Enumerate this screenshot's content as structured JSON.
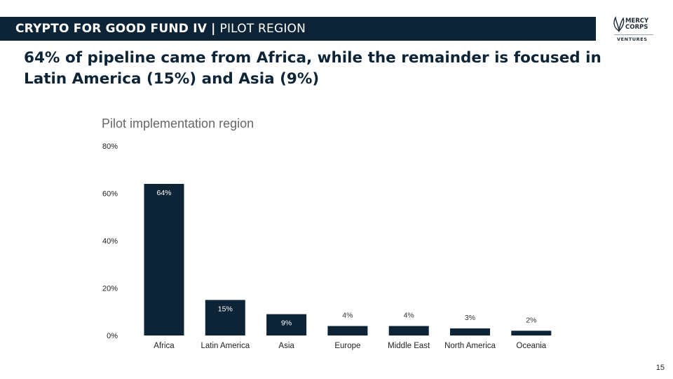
{
  "header": {
    "fund": "CRYPTO FOR GOOD FUND IV",
    "separator": "|",
    "section": "PILOT REGION"
  },
  "logo": {
    "line1": "MERCY",
    "line2": "CORPS",
    "line3": "VENTURES"
  },
  "headline": "64% of pipeline came from Africa, while the remainder is focused in Latin America (15%) and Asia (9%)",
  "page_number": "15",
  "colors": {
    "bar": "#0d2436",
    "header_bg": "#0d2436",
    "chart_title": "#666666"
  },
  "chart_data": {
    "type": "bar",
    "title": "Pilot implementation region",
    "categories": [
      "Africa",
      "Latin America",
      "Asia",
      "Europe",
      "Middle East",
      "North America",
      "Oceania"
    ],
    "values": [
      64,
      15,
      9,
      4,
      4,
      3,
      2
    ],
    "data_labels": [
      "64%",
      "15%",
      "9%",
      "4%",
      "4%",
      "3%",
      "2%"
    ],
    "ylim": [
      0,
      80
    ],
    "yticks": [
      0,
      20,
      40,
      60,
      80
    ],
    "ytick_labels": [
      "0%",
      "20%",
      "40%",
      "60%",
      "80%"
    ],
    "grid": false,
    "legend": "none"
  }
}
